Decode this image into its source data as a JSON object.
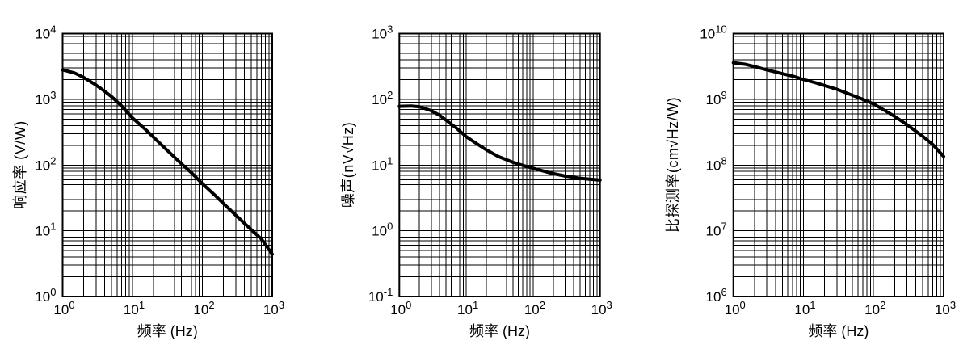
{
  "page": {
    "background": "#ffffff",
    "line_color": "#000000",
    "grid_color": "#000000"
  },
  "chart_data": [
    {
      "id": "responsivity",
      "type": "line",
      "scale": "log-log",
      "title": "",
      "xlabel": "频率 (Hz)",
      "ylabel": "响应率 (V/W)",
      "xlim": [
        1,
        1000
      ],
      "ylim": [
        1,
        10000
      ],
      "x_tick_exponents": [
        0,
        1,
        2,
        3
      ],
      "y_tick_exponents": [
        0,
        1,
        2,
        3,
        4
      ],
      "grid": "log major and minor, both axes",
      "legend": null,
      "line_color": "#000000",
      "x": [
        1,
        1.5,
        2,
        3,
        4,
        5,
        7,
        10,
        15,
        20,
        30,
        50,
        70,
        100,
        150,
        200,
        300,
        500,
        700,
        1000
      ],
      "y": [
        2800,
        2500,
        2150,
        1650,
        1320,
        1100,
        790,
        520,
        355,
        265,
        175,
        105,
        76,
        52,
        35,
        26,
        17.3,
        10.4,
        7.5,
        4.4
      ]
    },
    {
      "id": "noise",
      "type": "line",
      "scale": "log-log",
      "title": "",
      "xlabel": "频率 (Hz)",
      "ylabel": "噪声(nV√Hz)",
      "xlim": [
        1,
        1000
      ],
      "ylim": [
        0.1,
        1000
      ],
      "x_tick_exponents": [
        0,
        1,
        2,
        3
      ],
      "y_tick_exponents": [
        -1,
        0,
        1,
        2,
        3
      ],
      "grid": "log major and minor, both axes",
      "legend": null,
      "line_color": "#000000",
      "x": [
        1,
        1.5,
        2,
        3,
        4,
        5,
        7,
        10,
        15,
        20,
        30,
        50,
        70,
        100,
        150,
        200,
        300,
        500,
        700,
        1000
      ],
      "y": [
        78,
        79,
        77,
        67,
        57,
        48,
        37,
        27,
        20.5,
        17,
        13.5,
        11,
        9.9,
        8.9,
        8.0,
        7.4,
        6.8,
        6.3,
        6.1,
        5.9
      ]
    },
    {
      "id": "detectivity",
      "type": "line",
      "scale": "log-log",
      "title": "",
      "xlabel": "频率 (Hz)",
      "ylabel": "比探测率(cm√Hz/W)",
      "xlim": [
        1,
        1000
      ],
      "ylim": [
        1000000,
        10000000000
      ],
      "x_tick_exponents": [
        0,
        1,
        2,
        3
      ],
      "y_tick_exponents": [
        6,
        7,
        8,
        9,
        10
      ],
      "grid": "log major and minor, both axes",
      "legend": null,
      "line_color": "#000000",
      "x": [
        1,
        1.5,
        2,
        3,
        5,
        7,
        10,
        15,
        20,
        30,
        50,
        70,
        100,
        150,
        200,
        300,
        500,
        700,
        1000
      ],
      "y": [
        3600000000.0,
        3400000000.0,
        3150000000.0,
        2800000000.0,
        2450000000.0,
        2250000000.0,
        2000000000.0,
        1780000000.0,
        1620000000.0,
        1420000000.0,
        1150000000.0,
        1000000000.0,
        850000000.0,
        660000000.0,
        550000000.0,
        410000000.0,
        275000000.0,
        205000000.0,
        135000000.0
      ]
    }
  ]
}
